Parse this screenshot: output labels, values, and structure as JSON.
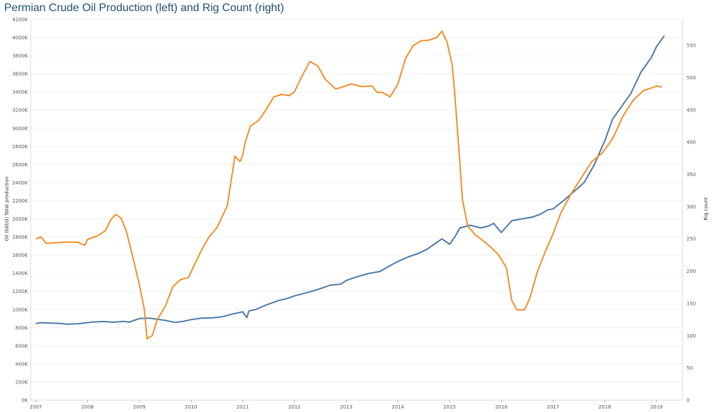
{
  "title": "Permian Crude Oil Production (left) and Rig Count (right)",
  "chart_data": {
    "type": "line",
    "title": "Permian Crude Oil Production (left) and Rig Count (right)",
    "x_ticks": [
      "2007",
      "2008",
      "2009",
      "2010",
      "2011",
      "2012",
      "2013",
      "2014",
      "2015",
      "2016",
      "2017",
      "2018",
      "2019"
    ],
    "y_left": {
      "label": "Oil (bbl/d) Total production",
      "ticks": [
        "0K",
        "200K",
        "400K",
        "600K",
        "800K",
        "1000K",
        "1200K",
        "1400K",
        "1600K",
        "1800K",
        "2000K",
        "2200K",
        "2400K",
        "2600K",
        "2800K",
        "3000K",
        "3200K",
        "3400K",
        "3600K",
        "3800K",
        "4000K",
        "4200K"
      ],
      "range": [
        0,
        4200
      ]
    },
    "y_right": {
      "label": "Rig count",
      "ticks": [
        "0",
        "50",
        "100",
        "150",
        "200",
        "250",
        "300",
        "350",
        "400",
        "450",
        "500",
        "550"
      ],
      "range": [
        0,
        590
      ]
    },
    "grid": true,
    "series": [
      {
        "axis": "left",
        "color": "#4e79a7",
        "x": [
          2007,
          2007.1,
          2007.3,
          2007.5,
          2007.6,
          2007.8,
          2008,
          2008.1,
          2008.3,
          2008.5,
          2008.7,
          2008.8,
          2009,
          2009.2,
          2009.5,
          2009.7,
          2009.85,
          2010,
          2010.2,
          2010.4,
          2010.6,
          2010.8,
          2011,
          2011.08,
          2011.12,
          2011.25,
          2011.45,
          2011.7,
          2011.85,
          2012,
          2012.2,
          2012.45,
          2012.7,
          2012.9,
          2013,
          2013.2,
          2013.45,
          2013.65,
          2013.9,
          2014,
          2014.2,
          2014.4,
          2014.55,
          2014.7,
          2014.85,
          2015,
          2015.1,
          2015.2,
          2015.4,
          2015.6,
          2015.75,
          2015.85,
          2016,
          2016.2,
          2016.4,
          2016.6,
          2016.75,
          2016.9,
          2017,
          2017.2,
          2017.4,
          2017.6,
          2017.8,
          2017.95,
          2018,
          2018.15,
          2018.3,
          2018.5,
          2018.7,
          2018.9,
          2019,
          2019.15
        ],
        "y": [
          845,
          855,
          850,
          845,
          838,
          842,
          855,
          862,
          868,
          860,
          870,
          860,
          900,
          905,
          880,
          858,
          870,
          888,
          905,
          908,
          920,
          950,
          975,
          910,
          985,
          1000,
          1050,
          1100,
          1120,
          1150,
          1180,
          1220,
          1270,
          1280,
          1320,
          1360,
          1400,
          1420,
          1500,
          1530,
          1580,
          1620,
          1660,
          1720,
          1780,
          1720,
          1800,
          1900,
          1930,
          1900,
          1920,
          1950,
          1850,
          1980,
          2000,
          2020,
          2050,
          2100,
          2110,
          2200,
          2300,
          2400,
          2600,
          2800,
          2860,
          3100,
          3220,
          3380,
          3620,
          3780,
          3900,
          4020
        ]
      },
      {
        "axis": "right",
        "color": "#f28e2b",
        "x": [
          2007,
          2007.1,
          2007.2,
          2007.4,
          2007.6,
          2007.8,
          2007.95,
          2008,
          2008.1,
          2008.2,
          2008.35,
          2008.45,
          2008.55,
          2008.65,
          2008.75,
          2008.85,
          2009,
          2009.1,
          2009.15,
          2009.25,
          2009.35,
          2009.5,
          2009.65,
          2009.8,
          2009.95,
          2010.05,
          2010.2,
          2010.35,
          2010.5,
          2010.7,
          2010.85,
          2010.95,
          2011,
          2011.05,
          2011.15,
          2011.3,
          2011.45,
          2011.6,
          2011.75,
          2011.9,
          2012,
          2012.15,
          2012.3,
          2012.45,
          2012.6,
          2012.8,
          2012.95,
          2013.1,
          2013.3,
          2013.5,
          2013.6,
          2013.7,
          2013.85,
          2014,
          2014.15,
          2014.3,
          2014.45,
          2014.6,
          2014.75,
          2014.85,
          2014.95,
          2015.05,
          2015.1,
          2015.15,
          2015.25,
          2015.35,
          2015.5,
          2015.65,
          2015.8,
          2015.95,
          2016.1,
          2016.2,
          2016.3,
          2016.45,
          2016.55,
          2016.7,
          2016.85,
          2017,
          2017.15,
          2017.35,
          2017.55,
          2017.75,
          2017.95,
          2018.15,
          2018.35,
          2018.55,
          2018.75,
          2018.95,
          2019,
          2019.1
        ],
        "y": [
          250,
          253,
          243,
          244,
          245,
          245,
          240,
          249,
          252,
          255,
          263,
          280,
          288,
          282,
          262,
          230,
          180,
          140,
          95,
          100,
          125,
          145,
          176,
          187,
          190,
          207,
          232,
          253,
          267,
          301,
          378,
          370,
          380,
          400,
          425,
          433,
          450,
          470,
          474,
          472,
          478,
          503,
          525,
          518,
          497,
          482,
          486,
          490,
          486,
          487,
          477,
          477,
          470,
          490,
          530,
          550,
          557,
          558,
          562,
          572,
          555,
          520,
          475,
          420,
          310,
          270,
          256,
          247,
          237,
          225,
          205,
          155,
          140,
          140,
          158,
          200,
          230,
          258,
          290,
          320,
          345,
          370,
          383,
          405,
          440,
          465,
          480,
          485,
          487,
          485
        ],
        "clip_note": ""
      }
    ]
  }
}
